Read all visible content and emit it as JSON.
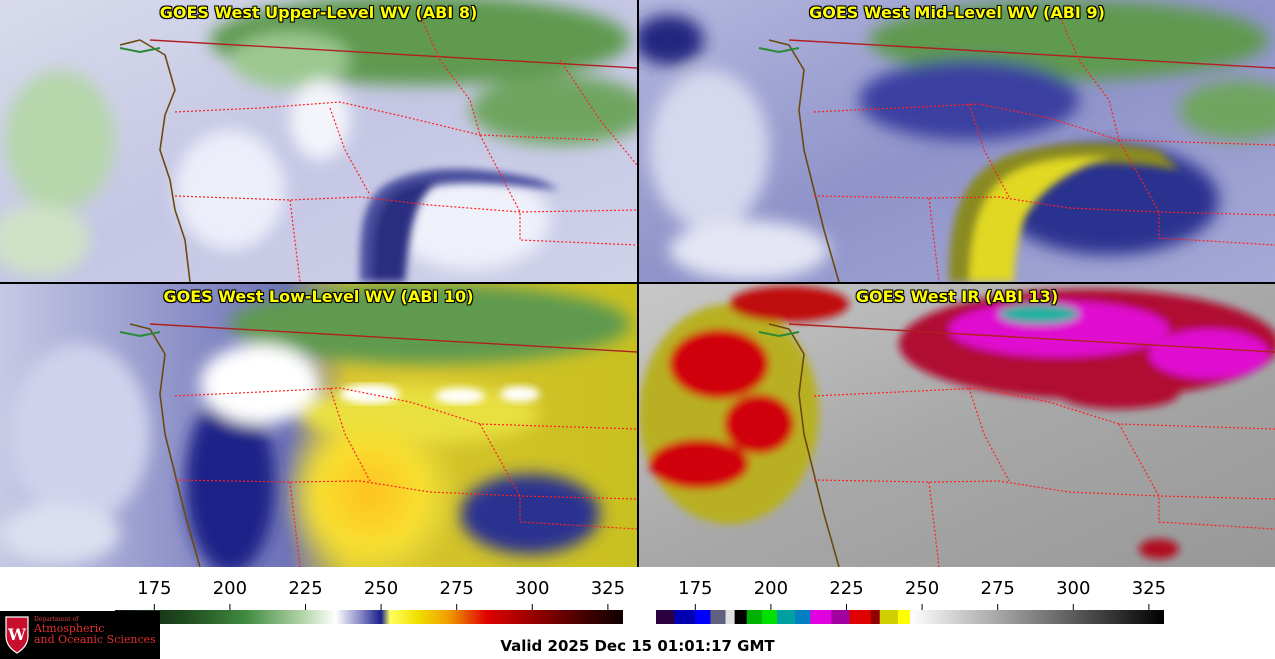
{
  "panels": {
    "upper_wv": {
      "title": "GOES West Upper-Level WV (ABI 8)"
    },
    "mid_wv": {
      "title": "GOES West Mid-Level WV (ABI 9)"
    },
    "low_wv": {
      "title": "GOES West Low-Level WV (ABI 10)"
    },
    "ir": {
      "title": "GOES West IR (ABI 13)"
    }
  },
  "colorbars": {
    "wv": {
      "ticks": [
        "175",
        "200",
        "225",
        "250",
        "275",
        "300",
        "325"
      ],
      "tick_values": [
        175,
        200,
        225,
        250,
        275,
        300,
        325
      ],
      "range": [
        162,
        330
      ],
      "stops": [
        {
          "v": 162,
          "c": "#0e1a0e"
        },
        {
          "v": 185,
          "c": "#1f4a1f"
        },
        {
          "v": 205,
          "c": "#3f8a3f"
        },
        {
          "v": 225,
          "c": "#b8d8b0"
        },
        {
          "v": 235,
          "c": "#ffffff"
        },
        {
          "v": 243,
          "c": "#8a8cc8"
        },
        {
          "v": 250,
          "c": "#1a1f8a"
        },
        {
          "v": 253,
          "c": "#ffff60"
        },
        {
          "v": 262,
          "c": "#f0e000"
        },
        {
          "v": 272,
          "c": "#f0a000"
        },
        {
          "v": 285,
          "c": "#e00000"
        },
        {
          "v": 302,
          "c": "#900000"
        },
        {
          "v": 318,
          "c": "#400000"
        },
        {
          "v": 330,
          "c": "#100000"
        }
      ]
    },
    "ir": {
      "ticks": [
        "175",
        "200",
        "225",
        "250",
        "275",
        "300",
        "325"
      ],
      "tick_values": [
        175,
        200,
        225,
        250,
        275,
        300,
        325
      ],
      "range": [
        162,
        330
      ],
      "segments": [
        {
          "from": 162,
          "to": 168,
          "c": "#2a0040"
        },
        {
          "from": 168,
          "to": 175,
          "c": "#0000b0"
        },
        {
          "from": 175,
          "to": 180,
          "c": "#0000ff"
        },
        {
          "from": 180,
          "to": 185,
          "c": "#606080"
        },
        {
          "from": 185,
          "to": 188,
          "c": "#e0e0e0"
        },
        {
          "from": 188,
          "to": 192,
          "c": "#000000"
        },
        {
          "from": 192,
          "to": 197,
          "c": "#00b000"
        },
        {
          "from": 197,
          "to": 202,
          "c": "#00e000"
        },
        {
          "from": 202,
          "to": 208,
          "c": "#00a0a0"
        },
        {
          "from": 208,
          "to": 213,
          "c": "#0080c0"
        },
        {
          "from": 213,
          "to": 220,
          "c": "#e000e0"
        },
        {
          "from": 220,
          "to": 226,
          "c": "#a000a0"
        },
        {
          "from": 226,
          "to": 233,
          "c": "#e00000"
        },
        {
          "from": 233,
          "to": 236,
          "c": "#900000"
        },
        {
          "from": 236,
          "to": 242,
          "c": "#d0d000"
        },
        {
          "from": 242,
          "to": 246,
          "c": "#ffff00"
        }
      ],
      "gray_from": 246,
      "gray_to": 330
    }
  },
  "logo": {
    "small_text": "Department of",
    "line1": "Atmospheric",
    "line2": "and Oceanic Sciences",
    "shield_letter": "W"
  },
  "valid_time": "Valid 2025 Dec 15 01:01:17 GMT",
  "colors": {
    "title_text": "#ffff00",
    "state_borders": "#ff2020",
    "coastline": "#6b4a10",
    "country_border": "#b02020"
  }
}
